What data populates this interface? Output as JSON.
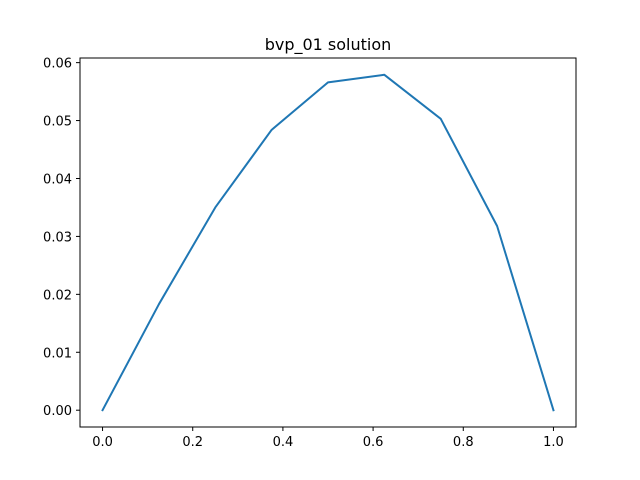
{
  "chart_data": {
    "type": "line",
    "title": "bvp_01 solution",
    "xlabel": "",
    "ylabel": "",
    "xlim": [
      -0.05,
      1.05
    ],
    "ylim": [
      -0.0029,
      0.0608
    ],
    "x_ticks": [
      0.0,
      0.2,
      0.4,
      0.6,
      0.8,
      1.0
    ],
    "x_tick_labels": [
      "0.0",
      "0.2",
      "0.4",
      "0.6",
      "0.8",
      "1.0"
    ],
    "y_ticks": [
      0.0,
      0.01,
      0.02,
      0.03,
      0.04,
      0.05,
      0.06
    ],
    "y_tick_labels": [
      "0.00",
      "0.01",
      "0.02",
      "0.03",
      "0.04",
      "0.05",
      "0.06"
    ],
    "grid": false,
    "series": [
      {
        "color": "#1f77b4",
        "x": [
          0.0,
          0.125,
          0.25,
          0.375,
          0.5,
          0.625,
          0.75,
          0.875,
          1.0
        ],
        "y": [
          0.0,
          0.0183,
          0.035,
          0.0484,
          0.0566,
          0.0579,
          0.0503,
          0.0318,
          0.0
        ]
      }
    ]
  }
}
